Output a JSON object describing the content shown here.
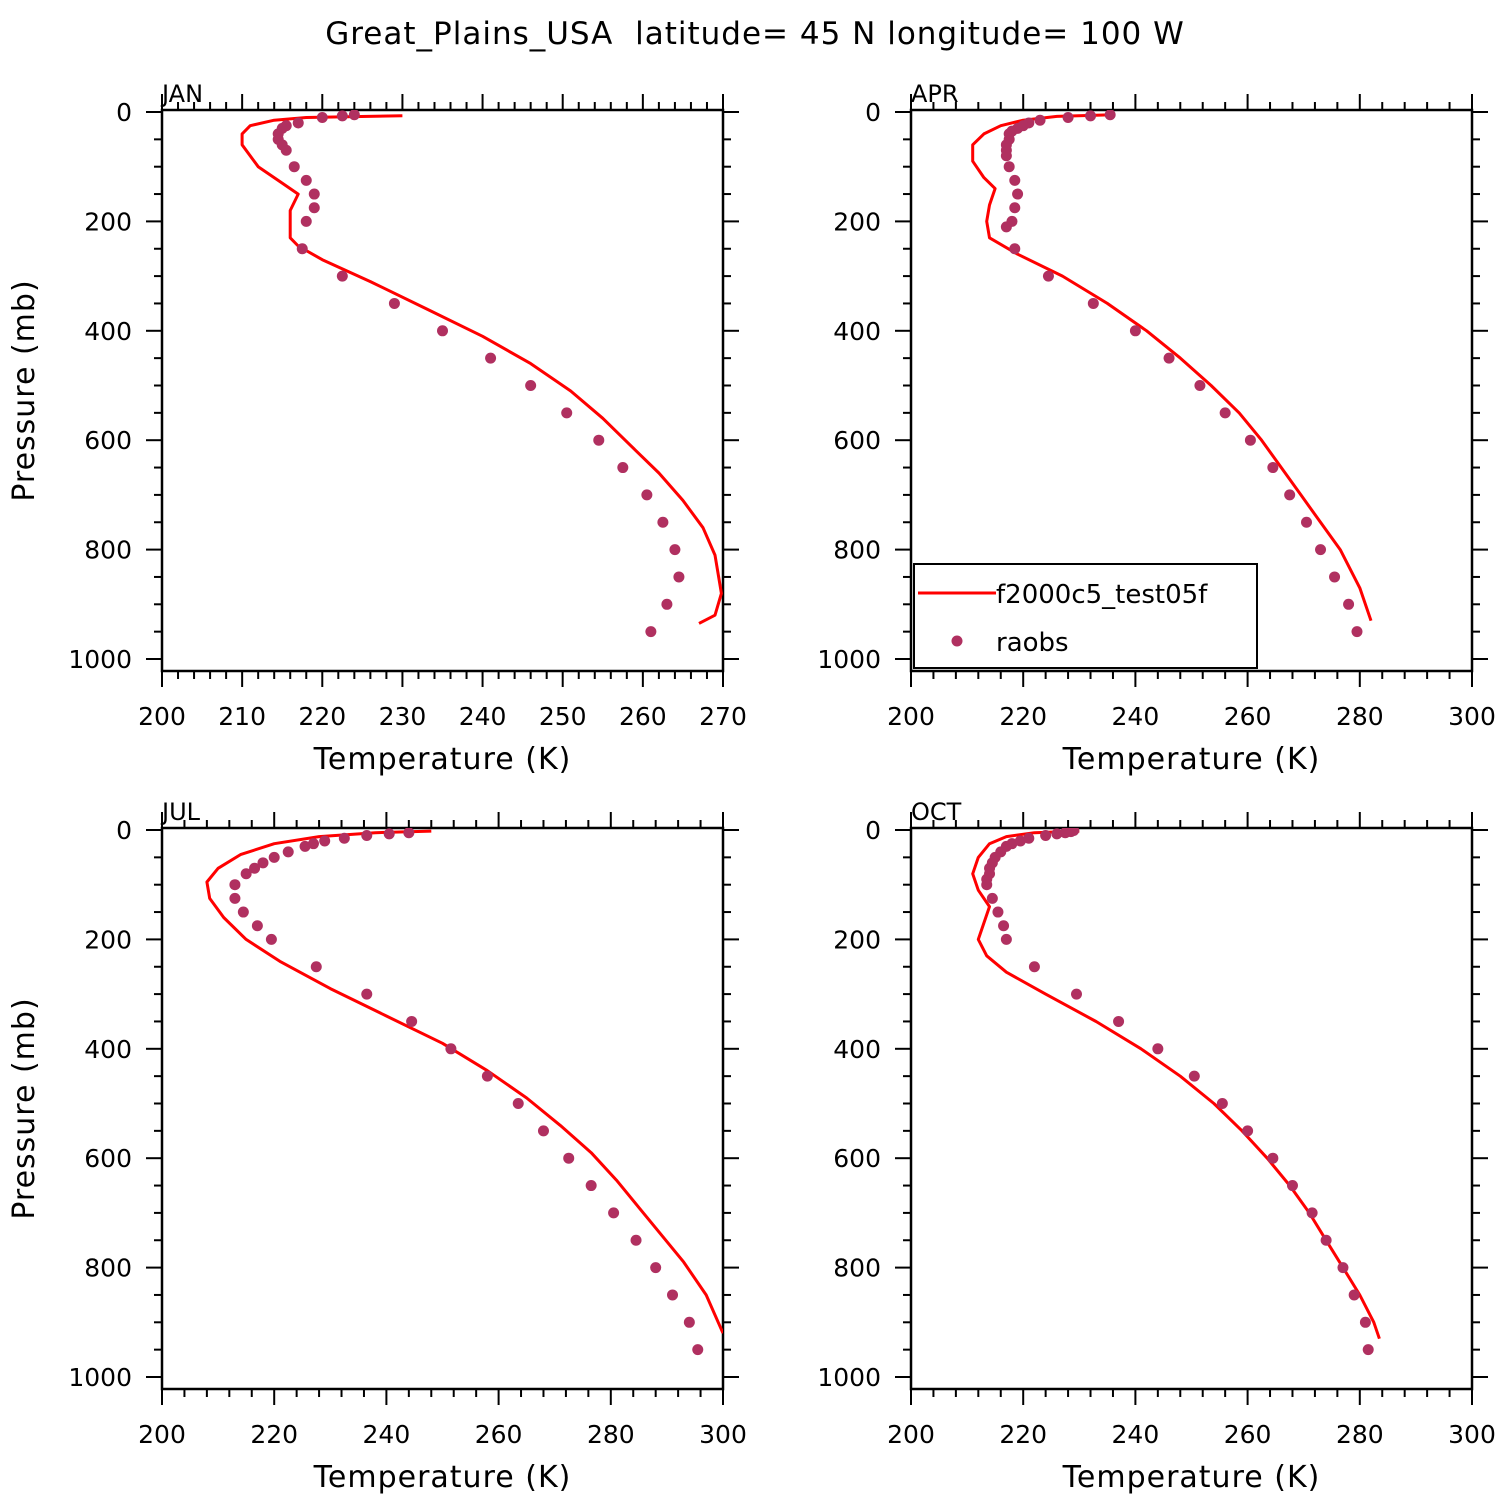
{
  "title": "Great_Plains_USA  latitude= 45 N longitude= 100 W",
  "legend": {
    "model_label": "f2000c5_test05f",
    "obs_label": "raobs",
    "model_color": "#ff0000",
    "obs_color": "#b03060"
  },
  "chart_data": [
    {
      "type": "line",
      "panel": "JAN",
      "xlabel": "Temperature (K)",
      "ylabel": "Pressure (mb)",
      "xlim": [
        200,
        270
      ],
      "ylim": [
        1000,
        0
      ],
      "xticks": [
        200,
        210,
        220,
        230,
        240,
        250,
        260,
        270
      ],
      "yticks": [
        0,
        200,
        400,
        600,
        800,
        1000
      ],
      "series": [
        {
          "name": "f2000c5_test05f",
          "kind": "line",
          "x": [
            230,
            218,
            214,
            211,
            210,
            210,
            212,
            215,
            217,
            216,
            216,
            217,
            220,
            226,
            233,
            240,
            246,
            251,
            255,
            258.5,
            262,
            265,
            267.5,
            269,
            269.8,
            269,
            267
          ],
          "y": [
            7,
            10,
            15,
            25,
            40,
            60,
            100,
            130,
            150,
            180,
            230,
            245,
            270,
            310,
            360,
            410,
            460,
            510,
            560,
            610,
            660,
            710,
            760,
            810,
            880,
            920,
            935
          ]
        },
        {
          "name": "raobs",
          "kind": "scatter",
          "x": [
            224,
            222.5,
            220,
            217,
            215.5,
            215,
            214.5,
            214.5,
            215,
            215.5,
            216.5,
            218,
            219,
            219,
            218,
            217.5,
            222.5,
            229,
            235,
            241,
            246,
            250.5,
            254.5,
            257.5,
            260.5,
            262.5,
            264,
            264.5,
            263,
            261
          ],
          "y": [
            5,
            7,
            10,
            20,
            25,
            30,
            40,
            50,
            60,
            70,
            100,
            125,
            150,
            175,
            200,
            250,
            300,
            350,
            400,
            450,
            500,
            550,
            600,
            650,
            700,
            750,
            800,
            850,
            900,
            950
          ]
        }
      ]
    },
    {
      "type": "line",
      "panel": "APR",
      "xlabel": "Temperature (K)",
      "ylabel": "",
      "xlim": [
        200,
        300
      ],
      "ylim": [
        1000,
        0
      ],
      "xticks": [
        200,
        220,
        240,
        260,
        280,
        300
      ],
      "yticks": [
        0,
        200,
        400,
        600,
        800,
        1000
      ],
      "series": [
        {
          "name": "f2000c5_test05f",
          "kind": "line",
          "x": [
            236,
            226,
            220,
            216,
            213,
            211,
            211,
            213,
            215,
            214,
            213.5,
            214,
            219,
            227,
            235,
            242,
            248,
            253.5,
            258.5,
            262.5,
            266,
            269.5,
            273,
            276.5,
            280,
            282
          ],
          "y": [
            5,
            8,
            15,
            25,
            40,
            60,
            90,
            120,
            140,
            170,
            200,
            230,
            260,
            300,
            350,
            400,
            450,
            500,
            550,
            600,
            650,
            700,
            750,
            800,
            870,
            930
          ]
        },
        {
          "name": "raobs",
          "kind": "scatter",
          "x": [
            235.5,
            232,
            228,
            223,
            221,
            220,
            219,
            218,
            217.5,
            217.5,
            217,
            217,
            217,
            217.5,
            218.5,
            219,
            218.5,
            218,
            217,
            218.5,
            224.5,
            232.5,
            240,
            246,
            251.5,
            256,
            260.5,
            264.5,
            267.5,
            270.5,
            273,
            275.5,
            278,
            279.5
          ],
          "y": [
            5,
            7,
            10,
            15,
            20,
            25,
            30,
            35,
            40,
            50,
            60,
            70,
            80,
            100,
            125,
            150,
            175,
            200,
            210,
            250,
            300,
            350,
            400,
            450,
            500,
            550,
            600,
            650,
            700,
            750,
            800,
            850,
            900,
            950
          ]
        }
      ]
    },
    {
      "type": "line",
      "panel": "JUL",
      "xlabel": "Temperature (K)",
      "ylabel": "Pressure (mb)",
      "xlim": [
        200,
        300
      ],
      "ylim": [
        1000,
        0
      ],
      "xticks": [
        200,
        220,
        240,
        260,
        280,
        300
      ],
      "yticks": [
        0,
        200,
        400,
        600,
        800,
        1000
      ],
      "series": [
        {
          "name": "f2000c5_test05f",
          "kind": "line",
          "x": [
            248,
            238,
            228,
            220,
            214,
            210,
            208,
            208.5,
            211,
            215,
            221,
            230,
            240,
            250,
            258,
            265,
            271,
            276.5,
            281,
            285,
            289,
            293,
            297,
            300
          ],
          "y": [
            2,
            5,
            12,
            25,
            45,
            70,
            95,
            125,
            160,
            200,
            240,
            290,
            340,
            390,
            440,
            490,
            540,
            590,
            640,
            690,
            740,
            790,
            850,
            920
          ]
        },
        {
          "name": "raobs",
          "kind": "scatter",
          "x": [
            244,
            240.5,
            236.5,
            232.5,
            229,
            227,
            225.5,
            222.5,
            220,
            218,
            216.5,
            215,
            213,
            213,
            214.5,
            217,
            219.5,
            227.5,
            236.5,
            244.5,
            251.5,
            258,
            263.5,
            268,
            272.5,
            276.5,
            280.5,
            284.5,
            288,
            291,
            294,
            295.5
          ],
          "y": [
            5,
            7,
            10,
            15,
            20,
            25,
            30,
            40,
            50,
            60,
            70,
            80,
            100,
            125,
            150,
            175,
            200,
            250,
            300,
            350,
            400,
            450,
            500,
            550,
            600,
            650,
            700,
            750,
            800,
            850,
            900,
            950
          ]
        }
      ]
    },
    {
      "type": "line",
      "panel": "OCT",
      "xlabel": "Temperature (K)",
      "ylabel": "",
      "xlim": [
        200,
        300
      ],
      "ylim": [
        1000,
        0
      ],
      "xticks": [
        200,
        220,
        240,
        260,
        280,
        300
      ],
      "yticks": [
        0,
        200,
        400,
        600,
        800,
        1000
      ],
      "series": [
        {
          "name": "f2000c5_test05f",
          "kind": "line",
          "x": [
            230,
            222,
            217,
            214,
            212,
            211,
            212,
            214,
            213,
            212,
            213.5,
            217,
            224,
            233,
            241,
            248,
            254,
            259,
            263.5,
            267.5,
            271,
            274,
            277,
            280,
            282.5,
            283.5
          ],
          "y": [
            2,
            5,
            12,
            25,
            50,
            80,
            110,
            140,
            170,
            200,
            230,
            260,
            300,
            350,
            400,
            450,
            500,
            550,
            600,
            650,
            700,
            750,
            800,
            850,
            900,
            930
          ]
        },
        {
          "name": "raobs",
          "kind": "scatter",
          "x": [
            229,
            228.5,
            227.5,
            226,
            224,
            221,
            219.5,
            218,
            217,
            216,
            215,
            214.5,
            214,
            214,
            213.5,
            213.5,
            214.5,
            215.5,
            216.5,
            217,
            222,
            229.5,
            237,
            244,
            250.5,
            255.5,
            260,
            264.5,
            268,
            271.5,
            274,
            277,
            279,
            281,
            281.5
          ],
          "y": [
            1,
            3,
            5,
            7,
            10,
            15,
            20,
            25,
            30,
            40,
            50,
            60,
            70,
            80,
            90,
            100,
            125,
            150,
            175,
            200,
            250,
            300,
            350,
            400,
            450,
            500,
            550,
            600,
            650,
            700,
            750,
            800,
            850,
            900,
            950
          ]
        }
      ]
    }
  ]
}
